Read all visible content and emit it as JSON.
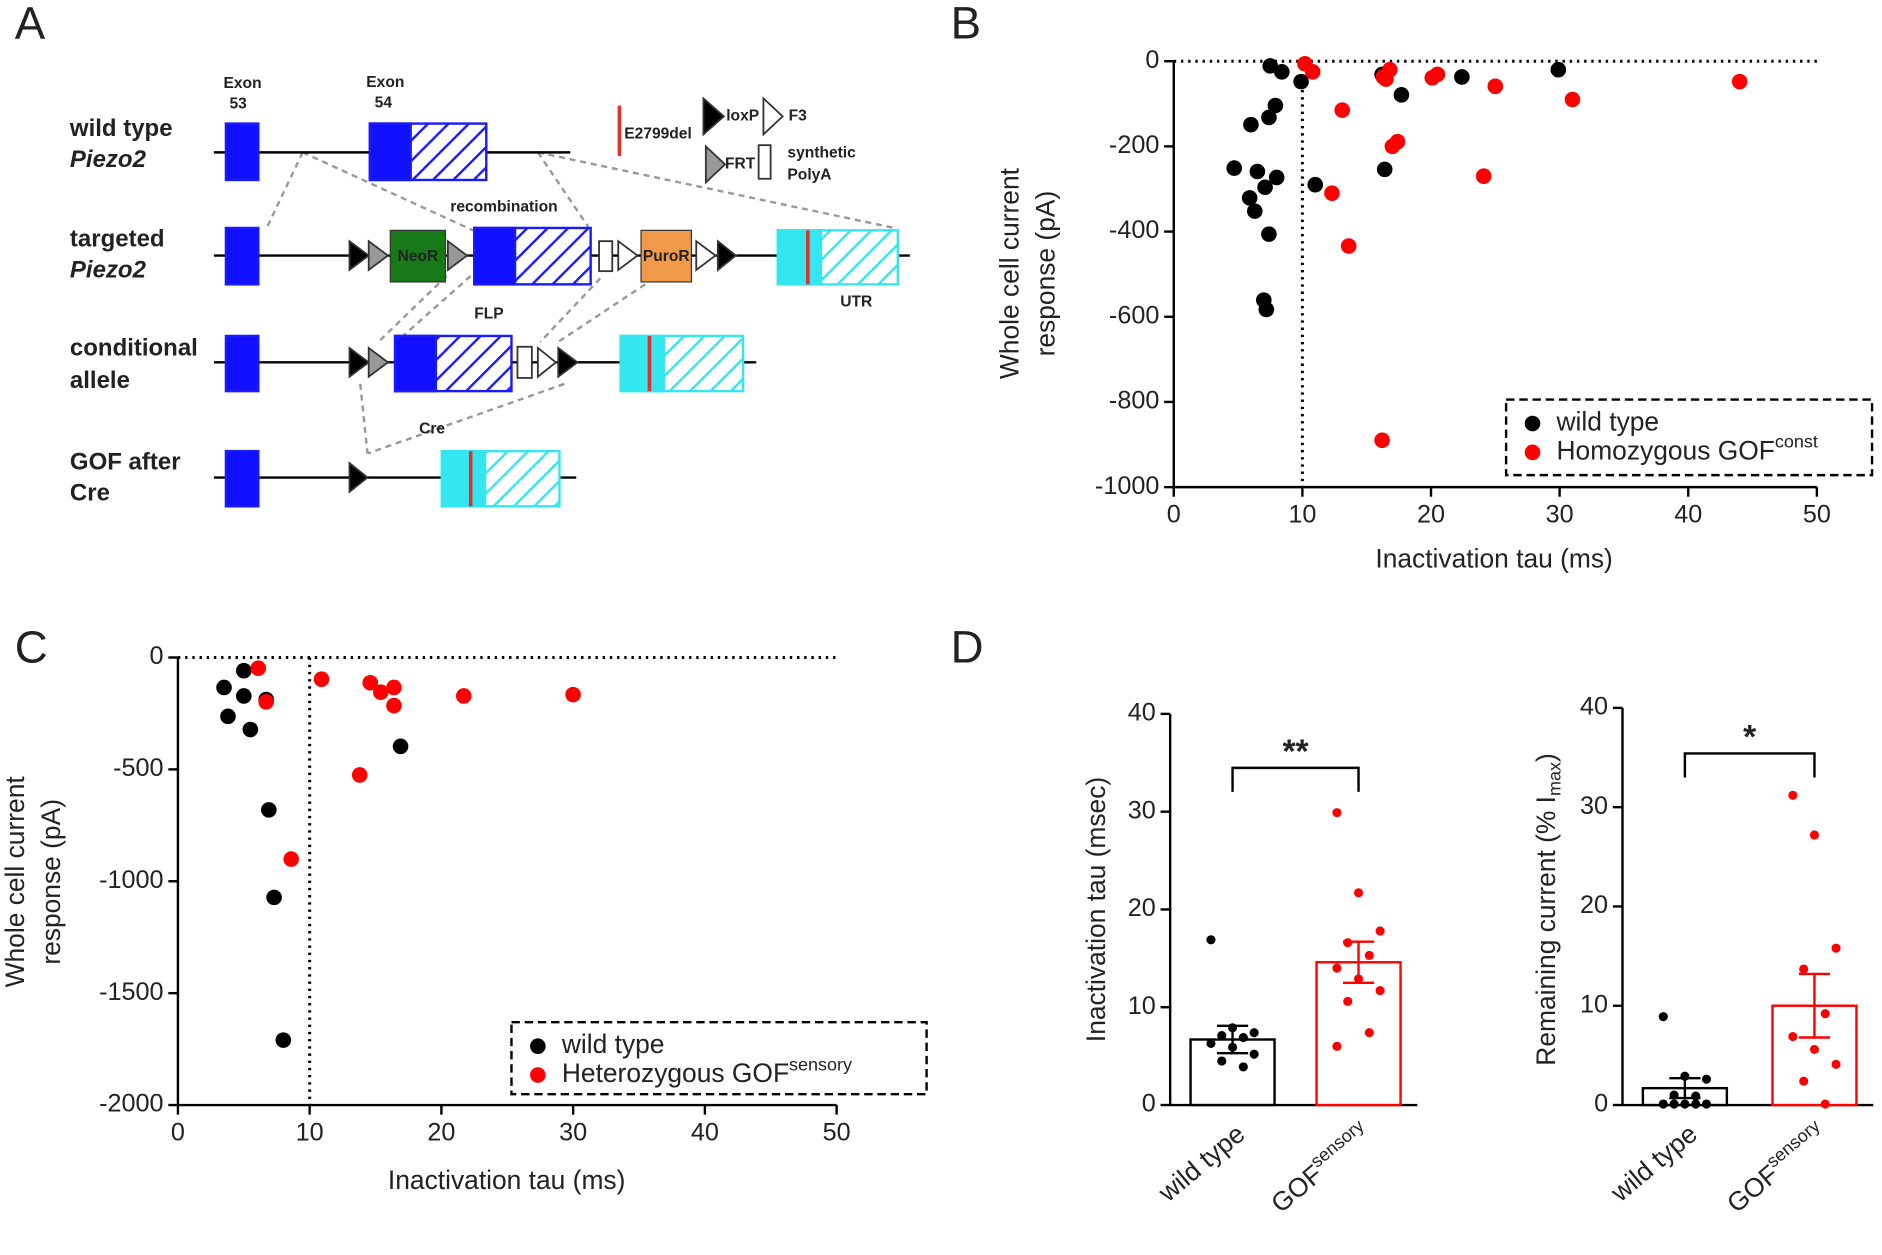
{
  "panel_labels": [
    "A",
    "B",
    "C",
    "D"
  ],
  "diagram": {
    "exon_labels": [
      [
        "Exon",
        "53"
      ],
      [
        "Exon",
        "54"
      ]
    ],
    "rows": [
      [
        "wild type",
        "Piezo2"
      ],
      [
        "targeted",
        "Piezo2"
      ],
      [
        "conditional",
        "allele"
      ],
      [
        "GOF after",
        "Cre"
      ]
    ],
    "key": {
      "mutation": "E2799del",
      "loxp": "loxP",
      "f3": "F3",
      "frt": "FRT",
      "polya": [
        "synthetic",
        "PolyA"
      ]
    },
    "steps": {
      "recombination": "recombination",
      "flp": "FLP",
      "cre": "Cre"
    },
    "elements": {
      "neo": "NeoR",
      "puro": "PuroR",
      "utr": "UTR"
    }
  },
  "chart_data": [
    {
      "type": "scatter",
      "xlabel": "Inactivation tau (ms)",
      "ylabel": [
        "Whole cell current",
        "response (pA)"
      ],
      "xlim": [
        0,
        50
      ],
      "ylim": [
        -1000,
        0
      ],
      "xticks": [
        0,
        10,
        20,
        30,
        40,
        50
      ],
      "yticks": [
        -1000,
        -800,
        -600,
        -400,
        -200,
        0
      ],
      "hline": 0,
      "vline": 10,
      "series": [
        {
          "name": "wild type",
          "color": "#000000",
          "x": [
            7.5,
            8.4,
            9.9,
            7.9,
            7.4,
            6.0,
            4.7,
            6.5,
            8.0,
            11.0,
            7.1,
            5.9,
            6.3,
            7.4,
            7.0,
            7.2,
            16.2,
            17.7,
            16.4,
            22.4,
            29.9
          ],
          "values": [
            -11,
            -25,
            -48,
            -104,
            -132,
            -149,
            -251,
            -259,
            -273,
            -290,
            -296,
            -321,
            -352,
            -406,
            -561,
            -583,
            -31,
            -79,
            -254,
            -37,
            -20
          ]
        },
        {
          "name": "Homozygous GOF",
          "name_sup": "const",
          "color": "#ff0000",
          "x": [
            10.2,
            10.8,
            13.1,
            12.3,
            13.6,
            16.5,
            16.8,
            17.0,
            17.4,
            20.1,
            20.5,
            25.0,
            24.1,
            31.0,
            44.0,
            16.2,
            16.3
          ],
          "values": [
            -6,
            -25,
            -115,
            -310,
            -434,
            -42,
            -20,
            -200,
            -189,
            -39,
            -31,
            -59,
            -270,
            -90,
            -48,
            -890,
            -37
          ]
        }
      ]
    },
    {
      "type": "scatter",
      "xlabel": "Inactivation tau (ms)",
      "ylabel": [
        "Whole cell current",
        "response (pA)"
      ],
      "xlim": [
        0,
        50
      ],
      "ylim": [
        -2000,
        0
      ],
      "xticks": [
        0,
        10,
        20,
        30,
        40,
        50
      ],
      "yticks": [
        -2000,
        -1500,
        -1000,
        -500,
        0
      ],
      "hline": 0,
      "vline": 10,
      "series": [
        {
          "name": "wild type",
          "color": "#000000",
          "x": [
            3.5,
            3.8,
            5.0,
            5.0,
            5.5,
            6.7,
            6.9,
            7.3,
            8.0,
            16.9
          ],
          "values": [
            -134,
            -263,
            -59,
            -172,
            -322,
            -188,
            -681,
            -1072,
            -1710,
            -397
          ]
        },
        {
          "name": "Heterozygous GOF",
          "name_sup": "sensory",
          "color": "#ff0000",
          "x": [
            6.1,
            6.7,
            8.6,
            10.9,
            13.8,
            14.6,
            15.4,
            16.4,
            16.4,
            21.7,
            30.0
          ],
          "values": [
            -48,
            -198,
            -901,
            -97,
            -525,
            -113,
            -155,
            -134,
            -215,
            -172,
            -166
          ]
        }
      ]
    },
    {
      "type": "bar",
      "ylabel": "Inactivation tau (msec)",
      "ylim": [
        0,
        40
      ],
      "yticks": [
        0,
        10,
        20,
        30,
        40
      ],
      "categories": [
        "wild type",
        "GOF"
      ],
      "category_sups": [
        null,
        "sensory"
      ],
      "colors": [
        "#000000",
        "#ff0000"
      ],
      "values": [
        6.7,
        14.6
      ],
      "errors": [
        1.4,
        2.1
      ],
      "significance": "**",
      "points": [
        [
          16.9,
          7.9,
          7.4,
          7.1,
          6.9,
          6.3,
          5.9,
          5.2,
          4.5,
          3.9
        ],
        [
          29.9,
          21.7,
          17.8,
          16.6,
          15.3,
          14.0,
          12.9,
          11.7,
          10.6,
          7.4,
          6.0
        ]
      ]
    },
    {
      "type": "bar",
      "ylabel": "Remaining current (% I",
      "ylabel_sub": "max",
      "ylabel_end": ")",
      "ylim": [
        0,
        40
      ],
      "yticks": [
        0,
        10,
        20,
        30,
        40
      ],
      "categories": [
        "wild type",
        "GOF"
      ],
      "category_sups": [
        null,
        "sensory"
      ],
      "colors": [
        "#000000",
        "#ff0000"
      ],
      "values": [
        1.7,
        10.0
      ],
      "errors": [
        1.0,
        3.2
      ],
      "significance": "*",
      "points": [
        [
          8.9,
          2.9,
          2.6,
          1.0,
          0.9,
          0.1,
          0.1,
          0.1,
          0.1,
          0.1
        ],
        [
          31.2,
          27.2,
          15.8,
          13.7,
          9.2,
          6.9,
          5.6,
          4.1,
          2.4,
          0.1
        ]
      ]
    }
  ]
}
